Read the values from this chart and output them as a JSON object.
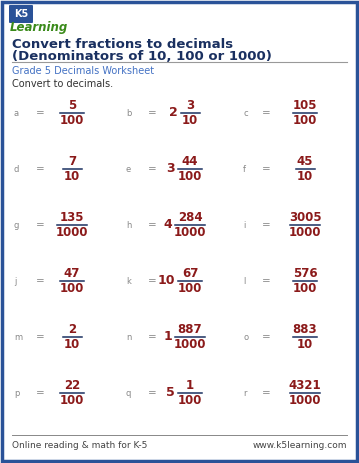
{
  "title_line1": "Convert fractions to decimals",
  "title_line2": "(Denominators of 10, 100 or 1000)",
  "subtitle": "Grade 5 Decimals Worksheet",
  "instruction": "Convert to decimals.",
  "footer_left": "Online reading & math for K-5",
  "footer_right": "www.k5learning.com",
  "border_color": "#2a5298",
  "title_color": "#1a3060",
  "subtitle_color": "#4472c4",
  "fraction_num_color": "#8b1a1a",
  "fraction_line_color": "#1a3060",
  "label_color": "#888888",
  "eq_color": "#888888",
  "bg_color": "#ffffff",
  "footer_color": "#444444",
  "problems": [
    {
      "row": 0,
      "col": 0,
      "label": "a",
      "whole": null,
      "num": "5",
      "den": "100"
    },
    {
      "row": 0,
      "col": 1,
      "label": "b",
      "whole": "2",
      "num": "3",
      "den": "10"
    },
    {
      "row": 0,
      "col": 2,
      "label": "c",
      "whole": null,
      "num": "105",
      "den": "100"
    },
    {
      "row": 1,
      "col": 0,
      "label": "d",
      "whole": null,
      "num": "7",
      "den": "10"
    },
    {
      "row": 1,
      "col": 1,
      "label": "e",
      "whole": "3",
      "num": "44",
      "den": "100"
    },
    {
      "row": 1,
      "col": 2,
      "label": "f",
      "whole": null,
      "num": "45",
      "den": "10"
    },
    {
      "row": 2,
      "col": 0,
      "label": "g",
      "whole": null,
      "num": "135",
      "den": "1000"
    },
    {
      "row": 2,
      "col": 1,
      "label": "h",
      "whole": "4",
      "num": "284",
      "den": "1000"
    },
    {
      "row": 2,
      "col": 2,
      "label": "i",
      "whole": null,
      "num": "3005",
      "den": "1000"
    },
    {
      "row": 3,
      "col": 0,
      "label": "j",
      "whole": null,
      "num": "47",
      "den": "100"
    },
    {
      "row": 3,
      "col": 1,
      "label": "k",
      "whole": "10",
      "num": "67",
      "den": "100"
    },
    {
      "row": 3,
      "col": 2,
      "label": "l",
      "whole": null,
      "num": "576",
      "den": "100"
    },
    {
      "row": 4,
      "col": 0,
      "label": "m",
      "whole": null,
      "num": "2",
      "den": "10"
    },
    {
      "row": 4,
      "col": 1,
      "label": "n",
      "whole": "1",
      "num": "887",
      "den": "1000"
    },
    {
      "row": 4,
      "col": 2,
      "label": "o",
      "whole": null,
      "num": "883",
      "den": "10"
    },
    {
      "row": 5,
      "col": 0,
      "label": "p",
      "whole": null,
      "num": "22",
      "den": "100"
    },
    {
      "row": 5,
      "col": 1,
      "label": "q",
      "whole": "5",
      "num": "1",
      "den": "100"
    },
    {
      "row": 5,
      "col": 2,
      "label": "r",
      "whole": null,
      "num": "4321",
      "den": "1000"
    }
  ]
}
